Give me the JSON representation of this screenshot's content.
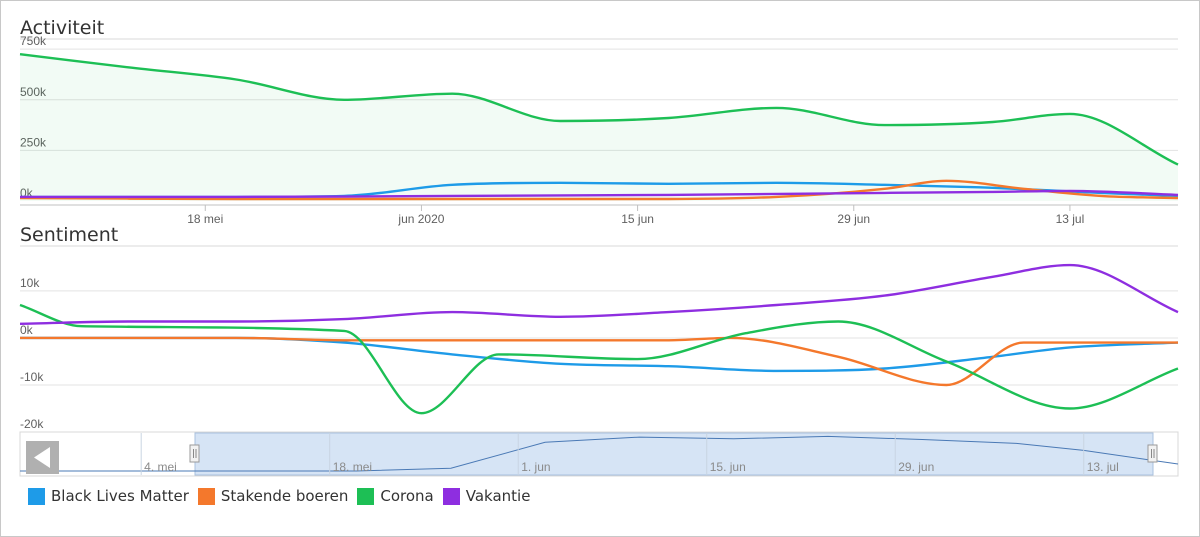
{
  "colors": {
    "black_lives_matter": "#1e9be8",
    "stakende_boeren": "#f4782c",
    "corona": "#1dbf55",
    "vakantie": "#8e2ee0"
  },
  "chart_data": [
    {
      "type": "area",
      "title": "Activiteit",
      "ylim": [
        0,
        800000
      ],
      "yticks": [
        0,
        250000,
        500000,
        750000
      ],
      "ytick_labels": [
        "0k",
        "250k",
        "500k",
        "750k"
      ],
      "x_range": [
        "2020-05-06",
        "2020-07-20"
      ],
      "xticks": [
        "2020-05-18",
        "2020-06-01",
        "2020-06-15",
        "2020-06-29",
        "2020-07-13"
      ],
      "xtick_labels": [
        "18 mei",
        "jun 2020",
        "15 jun",
        "29 jun",
        "13 jul"
      ],
      "grid": true,
      "series": [
        {
          "name": "Corona",
          "color": "#1dbf55",
          "fill": true,
          "x": [
            "2020-05-06",
            "2020-05-13",
            "2020-05-20",
            "2020-05-27",
            "2020-06-03",
            "2020-06-10",
            "2020-06-17",
            "2020-06-24",
            "2020-07-01",
            "2020-07-08",
            "2020-07-13",
            "2020-07-20"
          ],
          "y": [
            725000,
            660000,
            600000,
            500000,
            530000,
            395000,
            410000,
            460000,
            375000,
            390000,
            430000,
            180000
          ]
        },
        {
          "name": "Black Lives Matter",
          "color": "#1e9be8",
          "x": [
            "2020-05-06",
            "2020-05-20",
            "2020-05-27",
            "2020-06-03",
            "2020-06-10",
            "2020-06-17",
            "2020-06-24",
            "2020-07-01",
            "2020-07-08",
            "2020-07-15",
            "2020-07-20"
          ],
          "y": [
            20000,
            20000,
            25000,
            80000,
            90000,
            85000,
            90000,
            80000,
            65000,
            40000,
            25000
          ]
        },
        {
          "name": "Stakende boeren",
          "color": "#f4782c",
          "x": [
            "2020-05-06",
            "2020-05-20",
            "2020-06-03",
            "2020-06-17",
            "2020-06-24",
            "2020-07-01",
            "2020-07-05",
            "2020-07-10",
            "2020-07-15",
            "2020-07-20"
          ],
          "y": [
            15000,
            10000,
            10000,
            10000,
            20000,
            60000,
            100000,
            60000,
            25000,
            15000
          ]
        },
        {
          "name": "Vakantie",
          "color": "#8e2ee0",
          "x": [
            "2020-05-06",
            "2020-05-20",
            "2020-06-03",
            "2020-06-17",
            "2020-07-01",
            "2020-07-08",
            "2020-07-13",
            "2020-07-20"
          ],
          "y": [
            20000,
            20000,
            25000,
            30000,
            40000,
            45000,
            50000,
            30000
          ]
        }
      ]
    },
    {
      "type": "line",
      "title": "Sentiment",
      "ylim": [
        -20000,
        17000
      ],
      "yticks": [
        -20000,
        -10000,
        0,
        10000
      ],
      "ytick_labels": [
        "-20k",
        "-10k",
        "0k",
        "10k"
      ],
      "x_range": [
        "2020-05-06",
        "2020-07-20"
      ],
      "grid": true,
      "series": [
        {
          "name": "Black Lives Matter",
          "color": "#1e9be8",
          "x": [
            "2020-05-06",
            "2020-05-20",
            "2020-05-27",
            "2020-06-03",
            "2020-06-10",
            "2020-06-17",
            "2020-06-24",
            "2020-07-01",
            "2020-07-08",
            "2020-07-13",
            "2020-07-20"
          ],
          "y": [
            0,
            0,
            -1000,
            -3500,
            -5500,
            -6000,
            -7000,
            -6500,
            -4000,
            -2000,
            -1000
          ]
        },
        {
          "name": "Stakende boeren",
          "color": "#f4782c",
          "x": [
            "2020-05-06",
            "2020-05-20",
            "2020-05-27",
            "2020-06-03",
            "2020-06-10",
            "2020-06-17",
            "2020-06-21",
            "2020-06-28",
            "2020-07-05",
            "2020-07-10",
            "2020-07-20"
          ],
          "y": [
            0,
            0,
            -500,
            -500,
            -500,
            -500,
            0,
            -4000,
            -10000,
            -1000,
            -1000
          ]
        },
        {
          "name": "Corona",
          "color": "#1dbf55",
          "x": [
            "2020-05-06",
            "2020-05-10",
            "2020-05-27",
            "2020-06-01",
            "2020-06-06",
            "2020-06-15",
            "2020-06-22",
            "2020-06-28",
            "2020-07-05",
            "2020-07-13",
            "2020-07-20"
          ],
          "y": [
            7000,
            2500,
            1500,
            -16000,
            -3500,
            -4500,
            1000,
            3500,
            -5000,
            -15000,
            -6500
          ]
        },
        {
          "name": "Vakantie",
          "color": "#8e2ee0",
          "x": [
            "2020-05-06",
            "2020-05-13",
            "2020-05-20",
            "2020-05-27",
            "2020-06-03",
            "2020-06-10",
            "2020-06-17",
            "2020-06-24",
            "2020-07-01",
            "2020-07-08",
            "2020-07-13",
            "2020-07-20"
          ],
          "y": [
            3000,
            3500,
            3500,
            4000,
            5500,
            4500,
            5500,
            7000,
            9000,
            13000,
            15500,
            5500
          ]
        }
      ]
    },
    {
      "type": "line",
      "title": "",
      "role": "navigator",
      "x_range": [
        "2020-04-25",
        "2020-07-20"
      ],
      "selected_range": [
        "2020-05-06",
        "2020-07-20"
      ],
      "xticks": [
        "2020-05-04",
        "2020-05-18",
        "2020-06-01",
        "2020-06-15",
        "2020-06-29",
        "2020-07-13"
      ],
      "xtick_labels": [
        "4. mei",
        "18. mei",
        "1. jun",
        "15. jun",
        "29. jun",
        "13. jul"
      ],
      "ylim": [
        0,
        1000000
      ],
      "series": [
        {
          "color": "#4a79b5",
          "x": [
            "2020-04-25",
            "2020-05-20",
            "2020-05-27",
            "2020-06-03",
            "2020-06-10",
            "2020-06-17",
            "2020-06-24",
            "2020-07-01",
            "2020-07-08",
            "2020-07-13",
            "2020-07-20"
          ],
          "y": [
            0,
            0,
            80000,
            820000,
            970000,
            920000,
            990000,
            900000,
            790000,
            590000,
            200000
          ]
        }
      ]
    }
  ],
  "legend": [
    {
      "label": "Black Lives Matter",
      "color": "#1e9be8"
    },
    {
      "label": "Stakende boeren",
      "color": "#f4782c"
    },
    {
      "label": "Corona",
      "color": "#1dbf55"
    },
    {
      "label": "Vakantie",
      "color": "#8e2ee0"
    }
  ],
  "navigator": {
    "scroll_icon": "arrow-left-icon",
    "handle_icon": "grip-icon"
  }
}
